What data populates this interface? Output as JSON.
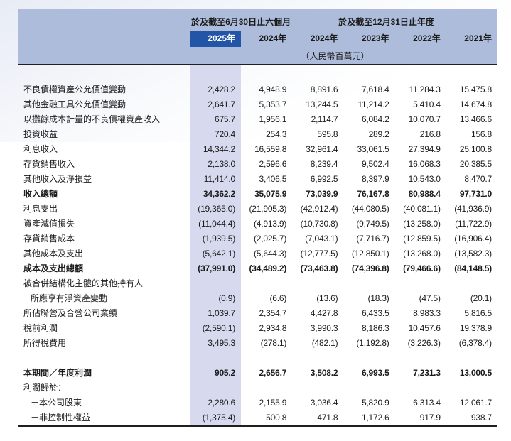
{
  "header": {
    "group1": "於及截至6月30日止六個月",
    "group2": "於及截至12月31日止年度",
    "years": [
      "2025年",
      "2024年",
      "2024年",
      "2023年",
      "2022年",
      "2021年"
    ],
    "highlight_year_index": 0,
    "unit_note": "（人民幣百萬元）"
  },
  "colors": {
    "header_band": "#aebcdb",
    "highlight_year_bg": "#2355a7",
    "highlight_column_bg": "#d7daee",
    "rule": "#1f1f1f"
  },
  "table": {
    "rows": [
      {
        "label": "不良債權資產公允價值變動",
        "indent": 0,
        "bold": false,
        "values": [
          "2,428.2",
          "4,948.9",
          "8,891.6",
          "7,618.4",
          "11,284.3",
          "15,475.8"
        ]
      },
      {
        "label": "其他金融工具公允價值變動",
        "indent": 0,
        "bold": false,
        "values": [
          "2,641.7",
          "5,353.7",
          "13,244.5",
          "11,214.2",
          "5,410.4",
          "14,674.8"
        ]
      },
      {
        "label": "以攤餘成本計量的不良債權資產收入",
        "indent": 0,
        "bold": false,
        "values": [
          "675.7",
          "1,956.1",
          "2,114.7",
          "6,084.2",
          "10,070.7",
          "13,466.6"
        ]
      },
      {
        "label": "投資收益",
        "indent": 0,
        "bold": false,
        "values": [
          "720.4",
          "254.3",
          "595.8",
          "289.2",
          "216.8",
          "156.8"
        ]
      },
      {
        "label": "利息收入",
        "indent": 0,
        "bold": false,
        "values": [
          "14,344.2",
          "16,559.8",
          "32,961.4",
          "33,061.5",
          "27,394.9",
          "25,100.8"
        ]
      },
      {
        "label": "存貨銷售收入",
        "indent": 0,
        "bold": false,
        "values": [
          "2,138.0",
          "2,596.6",
          "8,239.4",
          "9,502.4",
          "16,068.3",
          "20,385.5"
        ]
      },
      {
        "label": "其他收入及淨損益",
        "indent": 0,
        "bold": false,
        "values": [
          "11,414.0",
          "3,406.5",
          "6,992.5",
          "8,397.9",
          "10,543.0",
          "8,470.7"
        ]
      },
      {
        "label": "收入總額",
        "indent": 0,
        "bold": true,
        "values": [
          "34,362.2",
          "35,075.9",
          "73,039.9",
          "76,167.8",
          "80,988.4",
          "97,731.0"
        ]
      },
      {
        "label": "利息支出",
        "indent": 0,
        "bold": false,
        "values": [
          "(19,365.0)",
          "(21,905.3)",
          "(42,912.4)",
          "(44,080.5)",
          "(40,081.1)",
          "(41,936.9)"
        ]
      },
      {
        "label": "資產減值損失",
        "indent": 0,
        "bold": false,
        "values": [
          "(11,044.4)",
          "(4,913.9)",
          "(10,730.8)",
          "(9,749.5)",
          "(13,258.0)",
          "(11,722.9)"
        ]
      },
      {
        "label": "存貨銷售成本",
        "indent": 0,
        "bold": false,
        "values": [
          "(1,939.5)",
          "(2,025.7)",
          "(7,043.1)",
          "(7,716.7)",
          "(12,859.5)",
          "(16,906.4)"
        ]
      },
      {
        "label": "其他成本及支出",
        "indent": 0,
        "bold": false,
        "values": [
          "(5,642.1)",
          "(5,644.3)",
          "(12,777.5)",
          "(12,850.1)",
          "(13,268.0)",
          "(13,582.3)"
        ]
      },
      {
        "label": "成本及支出總額",
        "indent": 0,
        "bold": true,
        "values": [
          "(37,991.0)",
          "(34,489.2)",
          "(73,463.8)",
          "(74,396.8)",
          "(79,466.6)",
          "(84,148.5)"
        ]
      },
      {
        "label": "被合併結構化主體的其他持有人",
        "indent": 0,
        "bold": false,
        "values": [
          "",
          "",
          "",
          "",
          "",
          ""
        ]
      },
      {
        "label": "所應享有淨資產變動",
        "indent": 1,
        "bold": false,
        "values": [
          "(0.9)",
          "(6.6)",
          "(13.6)",
          "(18.3)",
          "(47.5)",
          "(20.1)"
        ]
      },
      {
        "label": "所佔聯營及合營公司業績",
        "indent": 0,
        "bold": false,
        "values": [
          "1,039.7",
          "2,354.7",
          "4,427.8",
          "6,433.5",
          "8,983.3",
          "5,816.5"
        ]
      },
      {
        "label": "稅前利潤",
        "indent": 0,
        "bold": false,
        "values": [
          "(2,590.1)",
          "2,934.8",
          "3,990.3",
          "8,186.3",
          "10,457.6",
          "19,378.9"
        ]
      },
      {
        "label": "所得稅費用",
        "indent": 0,
        "bold": false,
        "values": [
          "3,495.3",
          "(278.1)",
          "(482.1)",
          "(1,192.8)",
          "(3,226.3)",
          "(6,378.4)"
        ]
      },
      {
        "spacer": true
      },
      {
        "label": "本期間／年度利潤",
        "indent": 0,
        "bold": true,
        "values": [
          "905.2",
          "2,656.7",
          "3,508.2",
          "6,993.5",
          "7,231.3",
          "13,000.5"
        ]
      },
      {
        "label": "利潤歸於：",
        "indent": 0,
        "bold": false,
        "values": [
          "",
          "",
          "",
          "",
          "",
          ""
        ]
      },
      {
        "label": "－本公司股東",
        "indent": 1,
        "bold": false,
        "values": [
          "2,280.6",
          "2,155.9",
          "3,036.4",
          "5,820.9",
          "6,313.4",
          "12,061.7"
        ]
      },
      {
        "label": "－非控制性權益",
        "indent": 1,
        "bold": false,
        "values": [
          "(1,375.4)",
          "500.8",
          "471.8",
          "1,172.6",
          "917.9",
          "938.7"
        ]
      }
    ]
  }
}
